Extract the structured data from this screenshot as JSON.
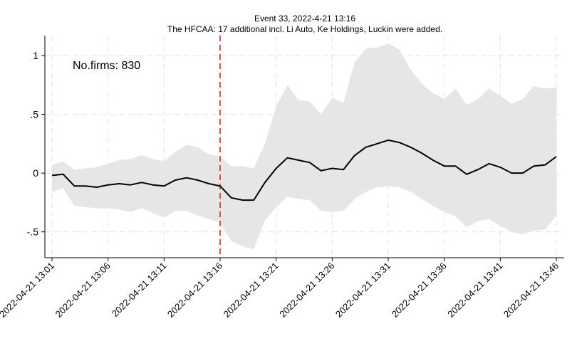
{
  "chart_data": {
    "type": "line",
    "title": "Event 33, 2022-4-21 13:16",
    "subtitle": "The HFCAA: 17 additional incl. Li Auto, Ke Holdings, Luckin were added.",
    "annotation": "No.firms: 830",
    "xlabel": "",
    "ylabel": "",
    "ylim": [
      -0.72,
      1.17
    ],
    "yticks": [
      1,
      0.5,
      0,
      -0.5
    ],
    "ytick_labels": [
      "1",
      ".5",
      "0",
      "-.5"
    ],
    "xticks": [
      0,
      5,
      10,
      15,
      20,
      25,
      30,
      35,
      40,
      45
    ],
    "xtick_labels": [
      "2022-04-21 13:01",
      "2022-04-21 13:06",
      "2022-04-21 13:11",
      "2022-04-21 13:16",
      "2022-04-21 13:21",
      "2022-04-21 13:26",
      "2022-04-21 13:31",
      "2022-04-21 13:36",
      "2022-04-21 13:41",
      "2022-04-21 13:46"
    ],
    "x_minutes": [
      0,
      1,
      2,
      3,
      4,
      5,
      6,
      7,
      8,
      9,
      10,
      11,
      12,
      13,
      14,
      15,
      16,
      17,
      18,
      19,
      20,
      21,
      22,
      23,
      24,
      25,
      26,
      27,
      28,
      29,
      30,
      31,
      32,
      33,
      34,
      35,
      36,
      37,
      38,
      39,
      40,
      41,
      42,
      43,
      44,
      45
    ],
    "event_minute": 15,
    "series": [
      {
        "values": [
          -0.02,
          -0.01,
          -0.11,
          -0.11,
          -0.12,
          -0.1,
          -0.09,
          -0.1,
          -0.08,
          -0.1,
          -0.11,
          -0.06,
          -0.04,
          -0.06,
          -0.09,
          -0.11,
          -0.21,
          -0.23,
          -0.23,
          -0.08,
          0.04,
          0.13,
          0.11,
          0.09,
          0.02,
          0.04,
          0.03,
          0.15,
          0.22,
          0.25,
          0.28,
          0.26,
          0.22,
          0.17,
          0.11,
          0.06,
          0.06,
          -0.01,
          0.03,
          0.08,
          0.05,
          0.0,
          0.0,
          0.06,
          0.07,
          0.14
        ],
        "upper": [
          0.07,
          0.1,
          0.03,
          0.04,
          0.05,
          0.08,
          0.11,
          0.12,
          0.15,
          0.12,
          0.1,
          0.18,
          0.24,
          0.22,
          0.16,
          0.14,
          0.06,
          0.06,
          0.04,
          0.25,
          0.57,
          0.75,
          0.62,
          0.61,
          0.5,
          0.64,
          0.6,
          0.94,
          1.06,
          1.07,
          1.1,
          1.05,
          0.88,
          0.76,
          0.68,
          0.63,
          0.72,
          0.58,
          0.63,
          0.72,
          0.66,
          0.59,
          0.63,
          0.74,
          0.72,
          0.73
        ],
        "lower": [
          -0.16,
          -0.13,
          -0.28,
          -0.29,
          -0.3,
          -0.3,
          -0.31,
          -0.33,
          -0.3,
          -0.34,
          -0.38,
          -0.32,
          -0.32,
          -0.36,
          -0.39,
          -0.42,
          -0.58,
          -0.62,
          -0.65,
          -0.4,
          -0.29,
          -0.2,
          -0.22,
          -0.23,
          -0.32,
          -0.33,
          -0.32,
          -0.22,
          -0.16,
          -0.12,
          -0.11,
          -0.12,
          -0.16,
          -0.22,
          -0.28,
          -0.33,
          -0.37,
          -0.46,
          -0.41,
          -0.39,
          -0.45,
          -0.5,
          -0.52,
          -0.49,
          -0.48,
          -0.36
        ]
      }
    ],
    "colors": {
      "line": "#000000",
      "band": "#e6e6e6",
      "event_line": "#d62728",
      "grid": "#e3e3e3",
      "axis": "#000000"
    },
    "grid": true,
    "legend": "none"
  }
}
